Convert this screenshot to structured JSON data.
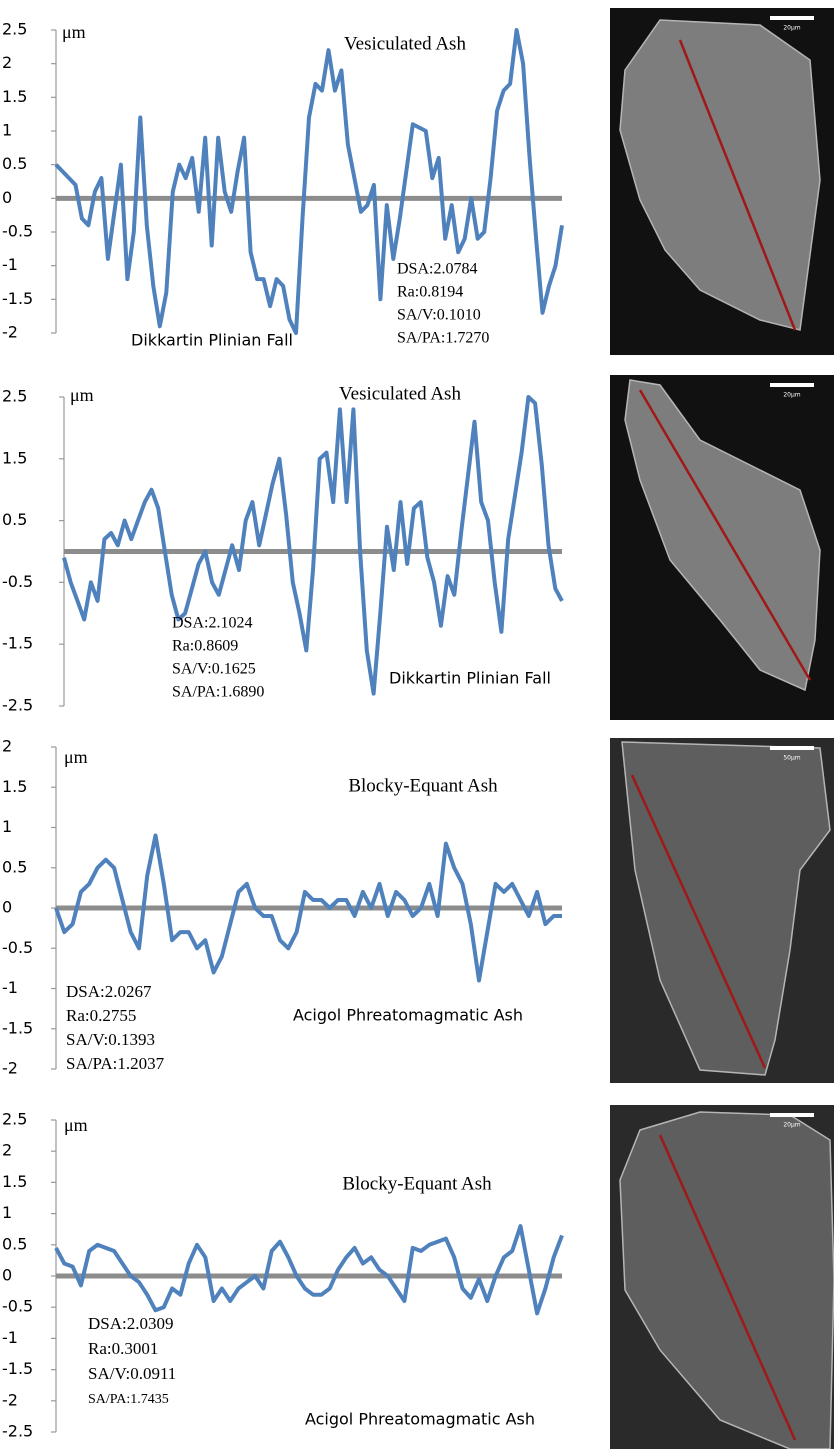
{
  "chart_data": [
    {
      "type": "line",
      "unit": "μm",
      "title": "Vesiculated Ash",
      "subtitle": "Dikkartin Plinian Fall",
      "annotations": [
        "DSA:2.0784",
        "Ra:0.8194",
        "SA/V:0.1010",
        "SA/PA:1.7270"
      ],
      "color": "#4f81bd",
      "ylim": [
        -2,
        2.5
      ],
      "yticks": [
        -2,
        -1.5,
        -1,
        -0.5,
        0,
        0.5,
        1,
        1.5,
        2,
        2.5
      ],
      "values": [
        0.5,
        0.4,
        0.3,
        0.2,
        -0.3,
        -0.4,
        0.1,
        0.3,
        -0.9,
        -0.2,
        0.5,
        -1.2,
        -0.5,
        1.2,
        -0.4,
        -1.3,
        -1.9,
        -1.4,
        0.1,
        0.5,
        0.3,
        0.6,
        -0.2,
        0.9,
        -0.7,
        0.9,
        0.1,
        -0.2,
        0.4,
        0.9,
        -0.8,
        -1.2,
        -1.2,
        -1.6,
        -1.2,
        -1.3,
        -1.8,
        -2.0,
        -0.3,
        1.2,
        1.7,
        1.6,
        2.2,
        1.6,
        1.9,
        0.8,
        0.3,
        -0.2,
        -0.1,
        0.2,
        -1.5,
        -0.1,
        -0.9,
        -0.3,
        0.4,
        1.1,
        1.05,
        1.0,
        0.3,
        0.6,
        -0.6,
        -0.1,
        -0.8,
        -0.6,
        0.0,
        -0.6,
        -0.5,
        0.3,
        1.3,
        1.6,
        1.7,
        2.5,
        2.0,
        0.6,
        -0.6,
        -1.7,
        -1.3,
        -1.0,
        -0.4
      ]
    },
    {
      "type": "line",
      "unit": "μm",
      "title": "Vesiculated Ash",
      "subtitle": "Dikkartin Plinian Fall",
      "annotations": [
        "DSA:2.1024",
        "Ra:0.8609",
        "SA/V:0.1625",
        "SA/PA:1.6890"
      ],
      "color": "#4f81bd",
      "ylim": [
        -2.5,
        2.5
      ],
      "yticks": [
        -2.5,
        -1.5,
        -0.5,
        0.5,
        1.5,
        2.5
      ],
      "values": [
        -0.1,
        -0.5,
        -0.8,
        -1.1,
        -0.5,
        -0.8,
        0.2,
        0.3,
        0.1,
        0.5,
        0.2,
        0.5,
        0.8,
        1.0,
        0.7,
        0.0,
        -0.7,
        -1.1,
        -1.0,
        -0.6,
        -0.2,
        0.0,
        -0.5,
        -0.7,
        -0.3,
        0.1,
        -0.3,
        0.5,
        0.8,
        0.1,
        0.6,
        1.1,
        1.5,
        0.6,
        -0.5,
        -1.0,
        -1.6,
        -0.3,
        1.5,
        1.6,
        0.8,
        2.3,
        0.8,
        2.3,
        0.0,
        -1.6,
        -2.3,
        -1.0,
        0.4,
        -0.3,
        0.8,
        -0.2,
        0.7,
        0.8,
        -0.1,
        -0.5,
        -1.2,
        -0.4,
        -0.7,
        0.3,
        1.2,
        2.1,
        0.8,
        0.5,
        -0.5,
        -1.3,
        0.2,
        0.9,
        1.6,
        2.5,
        2.4,
        1.4,
        0.1,
        -0.6,
        -0.8
      ]
    },
    {
      "type": "line",
      "unit": "μm",
      "title": "Blocky-Equant Ash",
      "subtitle": "Acigol Phreatomagmatic Ash",
      "annotations": [
        "DSA:2.0267",
        "Ra:0.2755",
        "SA/V:0.1393",
        "SA/PA:1.2037"
      ],
      "color": "#4f81bd",
      "ylim": [
        -2,
        2
      ],
      "yticks": [
        -2,
        -1.5,
        -1,
        -0.5,
        0,
        0.5,
        1,
        1.5,
        2
      ],
      "values": [
        0.0,
        -0.3,
        -0.2,
        0.2,
        0.3,
        0.5,
        0.6,
        0.5,
        0.1,
        -0.3,
        -0.5,
        0.4,
        0.9,
        0.3,
        -0.4,
        -0.3,
        -0.3,
        -0.5,
        -0.4,
        -0.8,
        -0.6,
        -0.2,
        0.2,
        0.3,
        0.0,
        -0.1,
        -0.1,
        -0.4,
        -0.5,
        -0.3,
        0.2,
        0.1,
        0.1,
        0.0,
        0.1,
        0.1,
        -0.1,
        0.2,
        0.0,
        0.3,
        -0.1,
        0.2,
        0.1,
        -0.1,
        0.0,
        0.3,
        -0.1,
        0.8,
        0.5,
        0.3,
        -0.2,
        -0.9,
        -0.3,
        0.3,
        0.2,
        0.3,
        0.1,
        -0.1,
        0.2,
        -0.2,
        -0.1,
        -0.1
      ]
    },
    {
      "type": "line",
      "unit": "μm",
      "title": "Blocky-Equant Ash",
      "subtitle": "Acigol Phreatomagmatic Ash",
      "annotations": [
        "DSA:2.0309",
        "Ra:0.3001",
        "SA/V:0.0911",
        "SA/PA:1.7435"
      ],
      "color": "#4f81bd",
      "ylim": [
        -2.5,
        2.5
      ],
      "yticks": [
        -2.5,
        -2,
        -1.5,
        -1,
        -0.5,
        0,
        0.5,
        1,
        1.5,
        2,
        2.5
      ],
      "values": [
        0.45,
        0.2,
        0.15,
        -0.15,
        0.4,
        0.5,
        0.45,
        0.4,
        0.2,
        0.0,
        -0.1,
        -0.3,
        -0.55,
        -0.5,
        -0.2,
        -0.3,
        0.2,
        0.5,
        0.3,
        -0.4,
        -0.2,
        -0.4,
        -0.2,
        -0.1,
        0.0,
        -0.2,
        0.4,
        0.55,
        0.3,
        0.0,
        -0.2,
        -0.3,
        -0.3,
        -0.2,
        0.1,
        0.3,
        0.45,
        0.2,
        0.3,
        0.1,
        0.0,
        -0.2,
        -0.4,
        0.45,
        0.4,
        0.5,
        0.55,
        0.6,
        0.3,
        -0.2,
        -0.35,
        -0.05,
        -0.4,
        0.0,
        0.3,
        0.4,
        0.8,
        0.1,
        -0.6,
        -0.2,
        0.3,
        0.65
      ]
    }
  ],
  "images": [
    {
      "scale_bar": "20µm"
    },
    {
      "scale_bar": "20µm"
    },
    {
      "scale_bar": "50µm"
    },
    {
      "scale_bar": "20µm"
    }
  ]
}
